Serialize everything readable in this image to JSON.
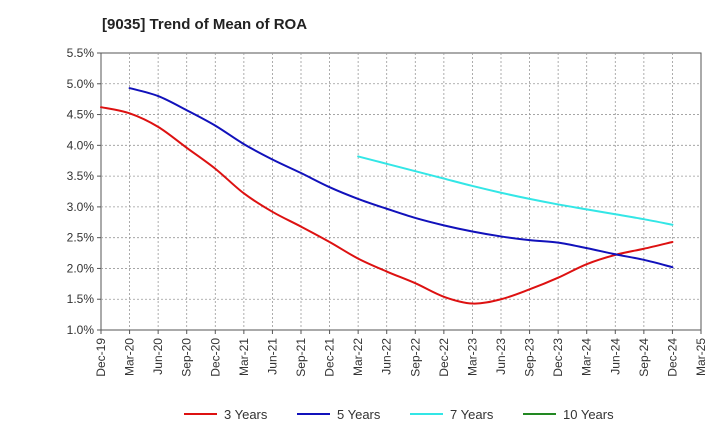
{
  "chart_data": {
    "type": "line",
    "title": "[9035]  Trend of Mean of ROA",
    "xlabel": "",
    "ylabel": "",
    "x_ticks": [
      "Dec-19",
      "Mar-20",
      "Jun-20",
      "Sep-20",
      "Dec-20",
      "Mar-21",
      "Jun-21",
      "Sep-21",
      "Dec-21",
      "Mar-22",
      "Jun-22",
      "Sep-22",
      "Dec-22",
      "Mar-23",
      "Jun-23",
      "Sep-23",
      "Dec-23",
      "Mar-24",
      "Jun-24",
      "Sep-24",
      "Dec-24",
      "Mar-25"
    ],
    "y_ticks": [
      "1.0%",
      "1.5%",
      "2.0%",
      "2.5%",
      "3.0%",
      "3.5%",
      "4.0%",
      "4.5%",
      "5.0%",
      "5.5%"
    ],
    "ylim": [
      1.0,
      5.5
    ],
    "grid": true,
    "legend_position": "bottom",
    "series": [
      {
        "name": "3 Years",
        "color": "#dd1111",
        "start_index": 0,
        "values": [
          4.62,
          4.52,
          4.3,
          3.96,
          3.62,
          3.22,
          2.92,
          2.68,
          2.43,
          2.16,
          1.95,
          1.76,
          1.54,
          1.43,
          1.5,
          1.66,
          1.85,
          2.07,
          2.22,
          2.32,
          2.43
        ]
      },
      {
        "name": "5 Years",
        "color": "#1111bb",
        "start_index": 1,
        "values": [
          4.93,
          4.8,
          4.57,
          4.32,
          4.02,
          3.77,
          3.55,
          3.32,
          3.13,
          2.97,
          2.82,
          2.7,
          2.6,
          2.52,
          2.46,
          2.42,
          2.33,
          2.23,
          2.14,
          2.02
        ]
      },
      {
        "name": "7 Years",
        "color": "#33e6e6",
        "start_index": 9,
        "values": [
          3.82,
          3.7,
          3.58,
          3.46,
          3.34,
          3.23,
          3.13,
          3.04,
          2.96,
          2.88,
          2.8,
          2.71
        ]
      },
      {
        "name": "10 Years",
        "color": "#228822",
        "start_index": 0,
        "values": []
      }
    ]
  }
}
